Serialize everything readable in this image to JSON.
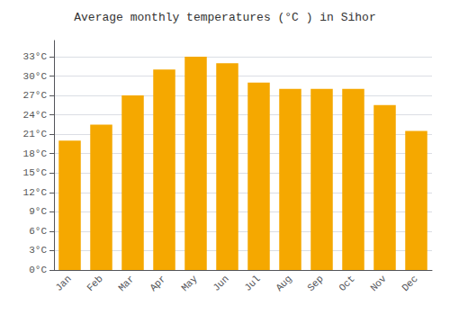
{
  "chart_data": {
    "type": "bar",
    "title": "Average monthly temperatures (°C ) in Sihor",
    "categories": [
      "Jan",
      "Feb",
      "Mar",
      "Apr",
      "May",
      "Jun",
      "Jul",
      "Aug",
      "Sep",
      "Oct",
      "Nov",
      "Dec"
    ],
    "values": [
      20.0,
      22.5,
      27.0,
      31.0,
      33.0,
      32.0,
      29.0,
      28.0,
      28.0,
      28.0,
      25.5,
      21.5
    ],
    "color": "#F5A800",
    "ylim": [
      0,
      35.5
    ],
    "yticks": [
      {
        "value": 0,
        "label": "0°C"
      },
      {
        "value": 3,
        "label": "3°C"
      },
      {
        "value": 6,
        "label": "6°C"
      },
      {
        "value": 9,
        "label": "9°C"
      },
      {
        "value": 12,
        "label": "12°C"
      },
      {
        "value": 15,
        "label": "15°C"
      },
      {
        "value": 18,
        "label": "18°C"
      },
      {
        "value": 21,
        "label": "21°C"
      },
      {
        "value": 24,
        "label": "24°C"
      },
      {
        "value": 27,
        "label": "27°C"
      },
      {
        "value": 30,
        "label": "30°C"
      },
      {
        "value": 33,
        "label": "33°C"
      }
    ],
    "grid": true
  }
}
